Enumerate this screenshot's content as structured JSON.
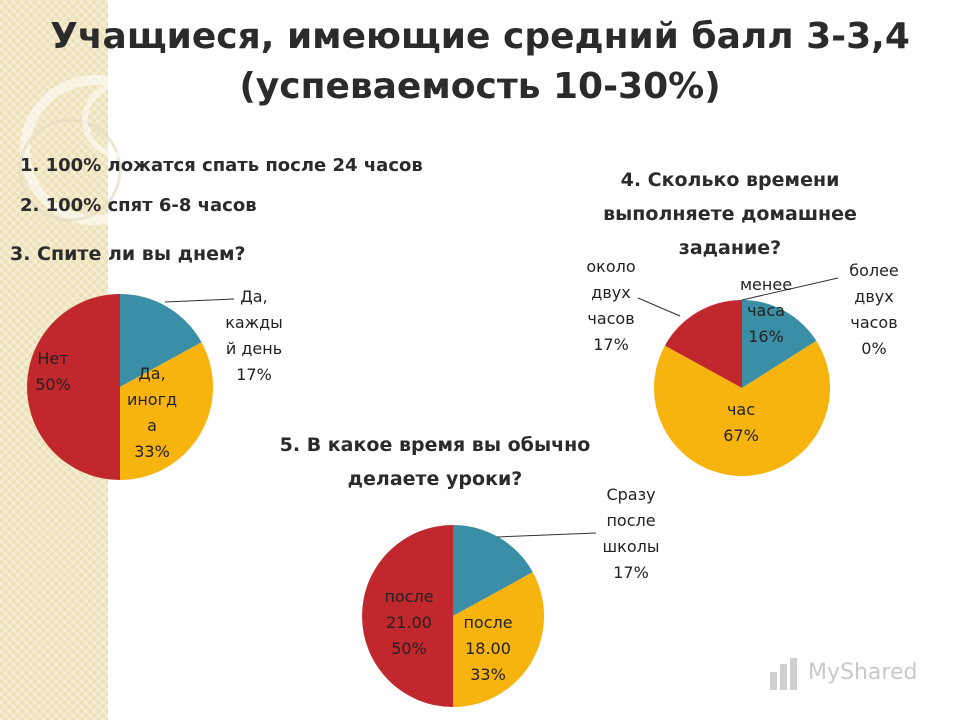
{
  "slide": {
    "title_line1": "Учащиеся, имеющие средний балл 3-3,4",
    "title_line2": "(успеваемость 10-30%)",
    "note1": "1. 100% ложатся спать после 24 часов",
    "note2": "2. 100% спят 6-8 часов"
  },
  "watermark": "MyShared",
  "colors": {
    "blue": "#3a8ea6",
    "yellow": "#f7b40f",
    "red": "#c0282e",
    "line": "#333333"
  },
  "chart_data": [
    {
      "type": "pie",
      "title": "3. Спите ли вы днем?",
      "slices": [
        {
          "label": "Да, каждый день",
          "value": 17,
          "text_lines": [
            "Да,",
            "кажды",
            "й день",
            "17%"
          ]
        },
        {
          "label": "Да, иногда",
          "value": 33,
          "text_lines": [
            "Да,",
            "иногд",
            "а",
            "33%"
          ]
        },
        {
          "label": "Нет",
          "value": 50,
          "text_lines": [
            "Нет",
            "50%"
          ]
        }
      ]
    },
    {
      "type": "pie",
      "title_lines": [
        "4. Сколько времени",
        "выполняете домашнее",
        "задание?"
      ],
      "slices": [
        {
          "label": "менее часа",
          "value": 16,
          "text_lines": [
            "менее",
            "часа",
            "16%"
          ]
        },
        {
          "label": "более двух часов",
          "value": 0,
          "text_lines": [
            "более",
            "двух",
            "часов",
            "0%"
          ]
        },
        {
          "label": "час",
          "value": 67,
          "text_lines": [
            "час",
            "67%"
          ]
        },
        {
          "label": "около двух часов",
          "value": 17,
          "text_lines": [
            "около",
            "двух",
            "часов",
            "17%"
          ]
        }
      ]
    },
    {
      "type": "pie",
      "title_lines": [
        "5. В какое время вы обычно",
        "делаете уроки?"
      ],
      "slices": [
        {
          "label": "Сразу после школы",
          "value": 17,
          "text_lines": [
            "Сразу",
            "после",
            "школы",
            "17%"
          ]
        },
        {
          "label": "после 18.00",
          "value": 33,
          "text_lines": [
            "после",
            "18.00",
            "33%"
          ]
        },
        {
          "label": "после 21.00",
          "value": 50,
          "text_lines": [
            "после",
            "21.00",
            "50%"
          ]
        }
      ]
    }
  ]
}
